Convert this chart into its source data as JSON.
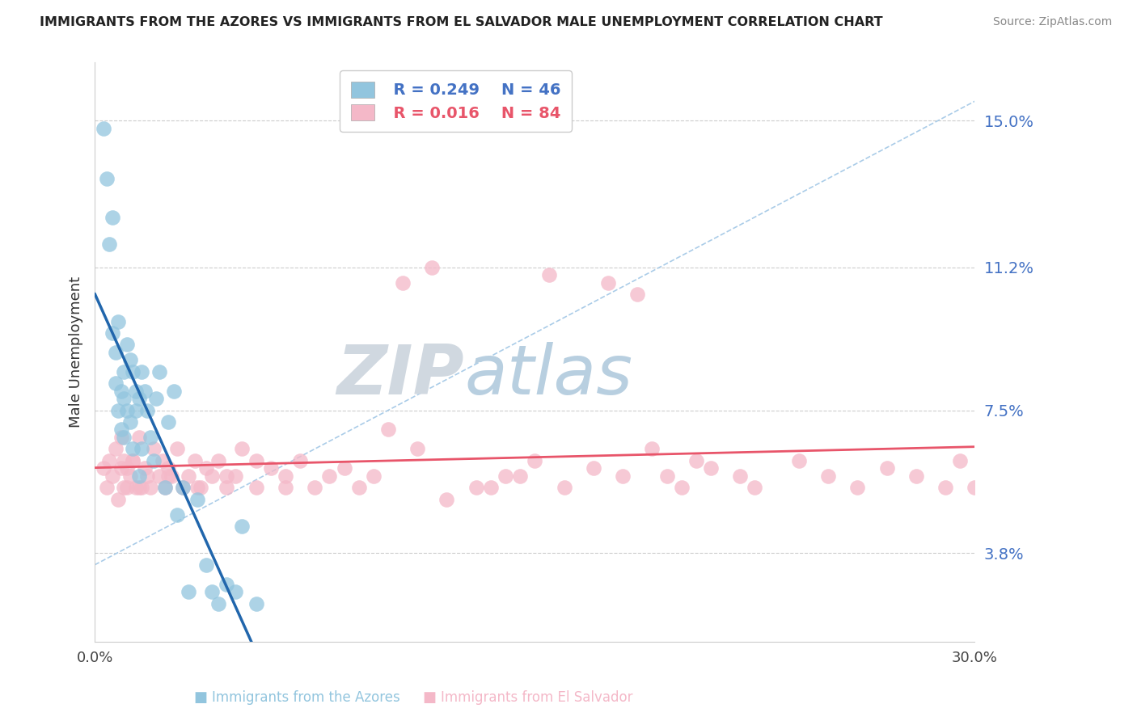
{
  "title": "IMMIGRANTS FROM THE AZORES VS IMMIGRANTS FROM EL SALVADOR MALE UNEMPLOYMENT CORRELATION CHART",
  "source": "Source: ZipAtlas.com",
  "ylabel": "Male Unemployment",
  "ytick_vals": [
    3.8,
    7.5,
    11.2,
    15.0
  ],
  "ytick_labels": [
    "3.8%",
    "7.5%",
    "11.2%",
    "15.0%"
  ],
  "xtick_labels": [
    "0.0%",
    "30.0%"
  ],
  "xmin": 0.0,
  "xmax": 0.3,
  "ymin": 1.5,
  "ymax": 16.5,
  "legend_r1": "R = 0.249",
  "legend_n1": "N = 46",
  "legend_r2": "R = 0.016",
  "legend_n2": "N = 84",
  "azores_color": "#92c5de",
  "salvador_color": "#f4b8c8",
  "azores_line_color": "#2166ac",
  "salvador_line_color": "#e8556a",
  "dashed_line_color": "#aacce8",
  "watermark_zip_color": "#c8d8e8",
  "watermark_atlas_color": "#b8d0e8",
  "background_color": "#ffffff",
  "grid_color": "#cccccc",
  "ytick_color": "#4472c4",
  "legend_color1": "#4472c4",
  "legend_color2": "#e8556a",
  "bottom_label1": "Immigrants from the Azores",
  "bottom_label2": "Immigrants from El Salvador",
  "azores_x": [
    0.003,
    0.004,
    0.005,
    0.006,
    0.006,
    0.007,
    0.007,
    0.008,
    0.008,
    0.009,
    0.009,
    0.01,
    0.01,
    0.01,
    0.011,
    0.011,
    0.012,
    0.012,
    0.013,
    0.013,
    0.014,
    0.014,
    0.015,
    0.015,
    0.016,
    0.016,
    0.017,
    0.018,
    0.019,
    0.02,
    0.021,
    0.022,
    0.024,
    0.025,
    0.027,
    0.028,
    0.03,
    0.032,
    0.035,
    0.038,
    0.04,
    0.042,
    0.045,
    0.048,
    0.05,
    0.055
  ],
  "azores_y": [
    14.8,
    13.5,
    11.8,
    9.5,
    12.5,
    9.0,
    8.2,
    9.8,
    7.5,
    8.0,
    7.0,
    8.5,
    7.8,
    6.8,
    9.2,
    7.5,
    8.8,
    7.2,
    8.5,
    6.5,
    8.0,
    7.5,
    7.8,
    5.8,
    8.5,
    6.5,
    8.0,
    7.5,
    6.8,
    6.2,
    7.8,
    8.5,
    5.5,
    7.2,
    8.0,
    4.8,
    5.5,
    2.8,
    5.2,
    3.5,
    2.8,
    2.5,
    3.0,
    2.8,
    4.5,
    2.5
  ],
  "salvador_x": [
    0.003,
    0.004,
    0.005,
    0.006,
    0.007,
    0.008,
    0.009,
    0.01,
    0.01,
    0.011,
    0.012,
    0.013,
    0.014,
    0.015,
    0.016,
    0.017,
    0.018,
    0.019,
    0.02,
    0.022,
    0.023,
    0.024,
    0.025,
    0.026,
    0.028,
    0.03,
    0.032,
    0.034,
    0.036,
    0.038,
    0.04,
    0.042,
    0.045,
    0.048,
    0.05,
    0.055,
    0.06,
    0.065,
    0.07,
    0.075,
    0.08,
    0.085,
    0.09,
    0.095,
    0.1,
    0.11,
    0.12,
    0.13,
    0.14,
    0.15,
    0.16,
    0.17,
    0.18,
    0.19,
    0.2,
    0.21,
    0.22,
    0.225,
    0.24,
    0.25,
    0.26,
    0.27,
    0.28,
    0.29,
    0.295,
    0.3,
    0.155,
    0.175,
    0.185,
    0.195,
    0.205,
    0.105,
    0.115,
    0.135,
    0.145,
    0.065,
    0.055,
    0.045,
    0.035,
    0.025,
    0.015,
    0.013,
    0.011,
    0.009
  ],
  "salvador_y": [
    6.0,
    5.5,
    6.2,
    5.8,
    6.5,
    5.2,
    6.8,
    5.5,
    6.2,
    6.0,
    5.8,
    6.2,
    5.5,
    6.8,
    5.5,
    6.0,
    5.8,
    5.5,
    6.5,
    5.8,
    6.2,
    5.5,
    6.0,
    5.8,
    6.5,
    5.5,
    5.8,
    6.2,
    5.5,
    6.0,
    5.8,
    6.2,
    5.5,
    5.8,
    6.5,
    5.5,
    6.0,
    5.8,
    6.2,
    5.5,
    5.8,
    6.0,
    5.5,
    5.8,
    7.0,
    6.5,
    5.2,
    5.5,
    5.8,
    6.2,
    5.5,
    6.0,
    5.8,
    6.5,
    5.5,
    6.0,
    5.8,
    5.5,
    6.2,
    5.8,
    5.5,
    6.0,
    5.8,
    5.5,
    6.2,
    5.5,
    11.0,
    10.8,
    10.5,
    5.8,
    6.2,
    10.8,
    11.2,
    5.5,
    5.8,
    5.5,
    6.2,
    5.8,
    5.5,
    5.8,
    5.5,
    6.2,
    5.5,
    6.0
  ]
}
